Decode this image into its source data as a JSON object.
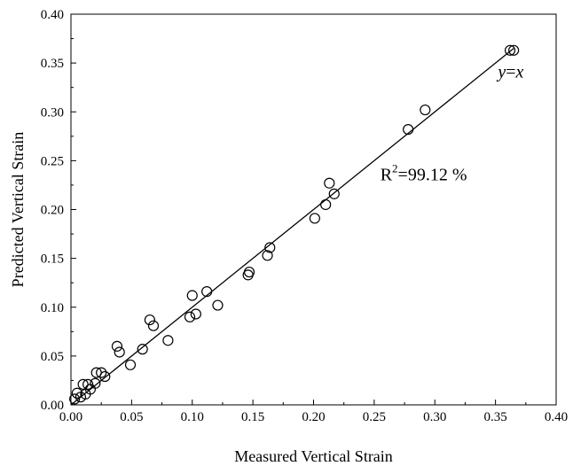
{
  "chart_data": {
    "type": "scatter",
    "xlabel": "Measured Vertical Strain",
    "ylabel": "Predicted Vertical Strain",
    "xlim": [
      0.0,
      0.4
    ],
    "ylim": [
      0.0,
      0.4
    ],
    "x_ticks": [
      "0.00",
      "0.05",
      "0.10",
      "0.15",
      "0.20",
      "0.25",
      "0.30",
      "0.35",
      "0.40"
    ],
    "y_ticks": [
      "0.00",
      "0.05",
      "0.10",
      "0.15",
      "0.20",
      "0.25",
      "0.30",
      "0.35",
      "0.40"
    ],
    "grid": false,
    "reference_line": {
      "label_italic_1": "y",
      "label_eq": "=",
      "label_italic_2": "x",
      "from": [
        0.0,
        0.0
      ],
      "to": [
        0.365,
        0.365
      ]
    },
    "r2_annotation": {
      "prefix": "R",
      "sup": "2",
      "value": "=99.12 %"
    },
    "points": [
      [
        0.003,
        0.006
      ],
      [
        0.005,
        0.012
      ],
      [
        0.008,
        0.008
      ],
      [
        0.01,
        0.021
      ],
      [
        0.012,
        0.011
      ],
      [
        0.014,
        0.021
      ],
      [
        0.016,
        0.016
      ],
      [
        0.02,
        0.022
      ],
      [
        0.021,
        0.033
      ],
      [
        0.025,
        0.033
      ],
      [
        0.028,
        0.029
      ],
      [
        0.038,
        0.06
      ],
      [
        0.04,
        0.054
      ],
      [
        0.049,
        0.041
      ],
      [
        0.059,
        0.057
      ],
      [
        0.065,
        0.087
      ],
      [
        0.068,
        0.081
      ],
      [
        0.08,
        0.066
      ],
      [
        0.098,
        0.09
      ],
      [
        0.1,
        0.112
      ],
      [
        0.103,
        0.093
      ],
      [
        0.112,
        0.116
      ],
      [
        0.121,
        0.102
      ],
      [
        0.146,
        0.133
      ],
      [
        0.147,
        0.136
      ],
      [
        0.162,
        0.153
      ],
      [
        0.164,
        0.161
      ],
      [
        0.201,
        0.191
      ],
      [
        0.21,
        0.205
      ],
      [
        0.213,
        0.227
      ],
      [
        0.217,
        0.216
      ],
      [
        0.278,
        0.282
      ],
      [
        0.292,
        0.302
      ],
      [
        0.362,
        0.363
      ],
      [
        0.365,
        0.363
      ]
    ]
  }
}
